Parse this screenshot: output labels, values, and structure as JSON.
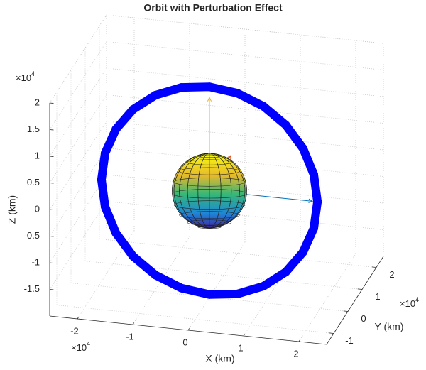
{
  "chart_data": {
    "type": "orbit3d",
    "title": "Orbit with Perturbation Effect",
    "xlabel": "X (km)",
    "ylabel": "Y (km)",
    "zlabel": "Z (km)",
    "axis_multiplier": {
      "base": "×10",
      "power": "4"
    },
    "xlim": [
      -2.5,
      2.5
    ],
    "ylim": [
      -1.5,
      2.5
    ],
    "zlim": [
      -2,
      2
    ],
    "xticks": [
      -2,
      -1,
      0,
      1,
      2
    ],
    "yticks": [
      -1,
      0,
      1,
      2
    ],
    "zticks": [
      -1.5,
      -1,
      -0.5,
      0,
      0.5,
      1,
      1.5,
      2
    ],
    "grid": true,
    "orbit": {
      "color": "#0000ff",
      "x": [
        1.95,
        1.884,
        1.689,
        1.379,
        0.975,
        0.505,
        0,
        -0.505,
        -0.975,
        -1.379,
        -1.689,
        -1.884,
        -1.95,
        -1.884,
        -1.689,
        -1.379,
        -0.975,
        -0.505,
        0,
        0.505,
        0.975,
        1.379,
        1.689,
        1.884,
        1.95
      ],
      "y": [
        0,
        0,
        0,
        0,
        0,
        0,
        0,
        0,
        0,
        0,
        0,
        0,
        0,
        0,
        0,
        0,
        0,
        0,
        0,
        0,
        0,
        0,
        0,
        0,
        0
      ],
      "z": [
        0,
        0.505,
        0.975,
        1.379,
        1.689,
        1.884,
        1.95,
        1.884,
        1.689,
        1.379,
        0.975,
        0.505,
        0,
        -0.505,
        -0.975,
        -1.379,
        -1.689,
        -1.884,
        -1.95,
        -1.884,
        -1.689,
        -1.379,
        -0.975,
        -0.505,
        0
      ]
    },
    "sphere": {
      "center": [
        0,
        0,
        0
      ],
      "radius": 0.7
    },
    "arrows": [
      {
        "color": "#edb120",
        "from": [
          0,
          0,
          0
        ],
        "to": [
          0,
          0,
          1.75
        ]
      },
      {
        "color": "#0072bd",
        "from": [
          0,
          0,
          0
        ],
        "to": [
          1.86,
          0,
          0
        ]
      },
      {
        "color": "#d95319",
        "from": [
          0.3,
          0,
          0.55
        ],
        "to": [
          0.3,
          0.35,
          0.55
        ]
      }
    ]
  }
}
